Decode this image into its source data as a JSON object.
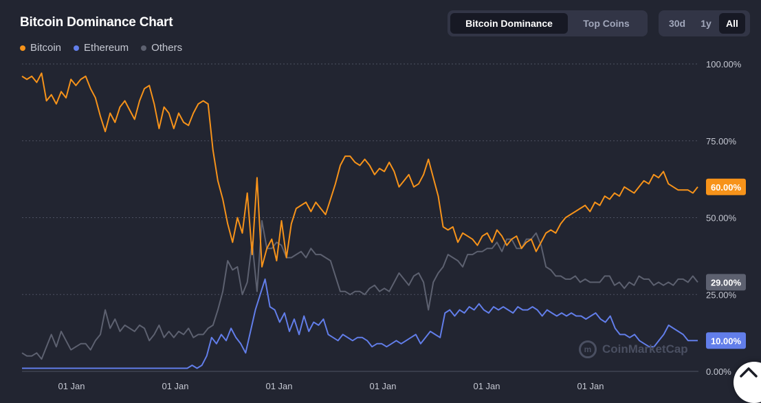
{
  "header": {
    "title": "Bitcoin Dominance Chart",
    "legend": [
      {
        "label": "Bitcoin",
        "color": "#f7931a"
      },
      {
        "label": "Ethereum",
        "color": "#627eea"
      },
      {
        "label": "Others",
        "color": "#5d6170"
      }
    ]
  },
  "view_toggle": {
    "options": [
      "Bitcoin Dominance",
      "Top Coins"
    ],
    "active": "Bitcoin Dominance"
  },
  "range_toggle": {
    "options": [
      "30d",
      "1y",
      "All"
    ],
    "active": "All"
  },
  "watermark": "CoinMarketCap",
  "chart_data": {
    "type": "line",
    "y_unit": "%",
    "ylim": [
      0,
      100
    ],
    "y_ticks": [
      0,
      25,
      50,
      75,
      100
    ],
    "y_tick_labels": [
      "0.00%",
      "25.00%",
      "50.00%",
      "75.00%",
      "100.00%"
    ],
    "x_tick_labels": [
      "01 Jan",
      "01 Jan",
      "01 Jan",
      "01 Jan",
      "01 Jan",
      "01 Jan"
    ],
    "grid": true,
    "legend_position": "top-left",
    "series": [
      {
        "name": "Bitcoin",
        "color": "#f7931a",
        "last_value_label": "60.00%",
        "values": [
          96,
          95,
          96,
          94,
          97,
          88,
          90,
          87,
          91,
          89,
          95,
          93,
          95,
          96,
          92,
          89,
          83,
          78,
          84,
          81,
          86,
          88,
          85,
          82,
          88,
          92,
          93,
          87,
          79,
          86,
          84,
          79,
          84,
          81,
          80,
          84,
          87,
          88,
          87,
          72,
          62,
          56,
          48,
          42,
          50,
          45,
          58,
          38,
          63,
          34,
          40,
          43,
          36,
          49,
          37,
          48,
          53,
          54,
          55,
          52,
          55,
          53,
          51,
          56,
          61,
          67,
          70,
          70,
          68,
          67,
          69,
          67,
          64,
          66,
          65,
          68,
          65,
          60,
          62,
          64,
          60,
          61,
          64,
          69,
          63,
          57,
          47,
          46,
          47,
          42,
          45,
          44,
          43,
          41,
          44,
          45,
          42,
          46,
          44,
          41,
          43,
          44,
          40,
          42,
          43,
          39,
          42,
          45,
          46,
          45,
          48,
          50,
          51,
          52,
          53,
          54,
          52,
          55,
          54,
          57,
          56,
          58,
          57,
          60,
          59,
          58,
          60,
          62,
          61,
          64,
          63,
          65,
          61,
          60,
          59,
          59,
          59,
          58,
          60
        ]
      },
      {
        "name": "Ethereum",
        "color": "#627eea",
        "last_value_label": "10.00%",
        "values": [
          1,
          1,
          1,
          1,
          1,
          1,
          1,
          1,
          1,
          1,
          1,
          1,
          1,
          1,
          1,
          1,
          1,
          1,
          1,
          1,
          1,
          1,
          1,
          1,
          1,
          1,
          1,
          1,
          1,
          1,
          1,
          1,
          1,
          1,
          1,
          2,
          1,
          2,
          5,
          11,
          9,
          12,
          10,
          14,
          11,
          9,
          6,
          13,
          20,
          25,
          30,
          21,
          20,
          16,
          19,
          13,
          17,
          12,
          18,
          13,
          16,
          15,
          17,
          12,
          11,
          10,
          12,
          11,
          10,
          11,
          11,
          10,
          8,
          9,
          9,
          8,
          9,
          10,
          9,
          10,
          11,
          12,
          9,
          11,
          13,
          12,
          11,
          19,
          20,
          18,
          20,
          19,
          21,
          20,
          22,
          20,
          19,
          21,
          20,
          21,
          20,
          19,
          21,
          20,
          20,
          21,
          20,
          18,
          20,
          19,
          18,
          19,
          18,
          19,
          18,
          18,
          17,
          18,
          19,
          17,
          16,
          18,
          14,
          12,
          12,
          11,
          12,
          10,
          9,
          8,
          8,
          10,
          12,
          15,
          14,
          13,
          12,
          10,
          10,
          10
        ]
      },
      {
        "name": "Others",
        "color": "#5d6170",
        "last_value_label": "29.00%",
        "values": [
          6,
          5,
          5,
          6,
          4,
          8,
          12,
          8,
          13,
          10,
          7,
          8,
          9,
          9,
          7,
          10,
          12,
          20,
          14,
          17,
          13,
          15,
          14,
          13,
          15,
          14,
          10,
          12,
          15,
          11,
          13,
          11,
          13,
          12,
          14,
          11,
          12,
          12,
          14,
          15,
          20,
          26,
          36,
          33,
          34,
          25,
          29,
          42,
          26,
          49,
          40,
          40,
          42,
          41,
          37,
          37,
          38,
          39,
          37,
          40,
          38,
          38,
          37,
          36,
          31,
          26,
          26,
          25,
          26,
          26,
          25,
          27,
          28,
          26,
          27,
          26,
          29,
          32,
          30,
          28,
          31,
          32,
          29,
          20,
          29,
          32,
          34,
          38,
          37,
          36,
          34,
          38,
          38,
          39,
          39,
          40,
          40,
          42,
          39,
          43,
          43,
          40,
          40,
          43,
          43,
          45,
          41,
          34,
          33,
          31,
          31,
          30,
          30,
          31,
          29,
          30,
          29,
          29,
          29,
          31,
          31,
          28,
          29,
          27,
          29,
          28,
          31,
          30,
          30,
          28,
          29,
          28,
          29,
          28,
          30,
          30,
          29,
          31,
          29
        ]
      }
    ]
  }
}
